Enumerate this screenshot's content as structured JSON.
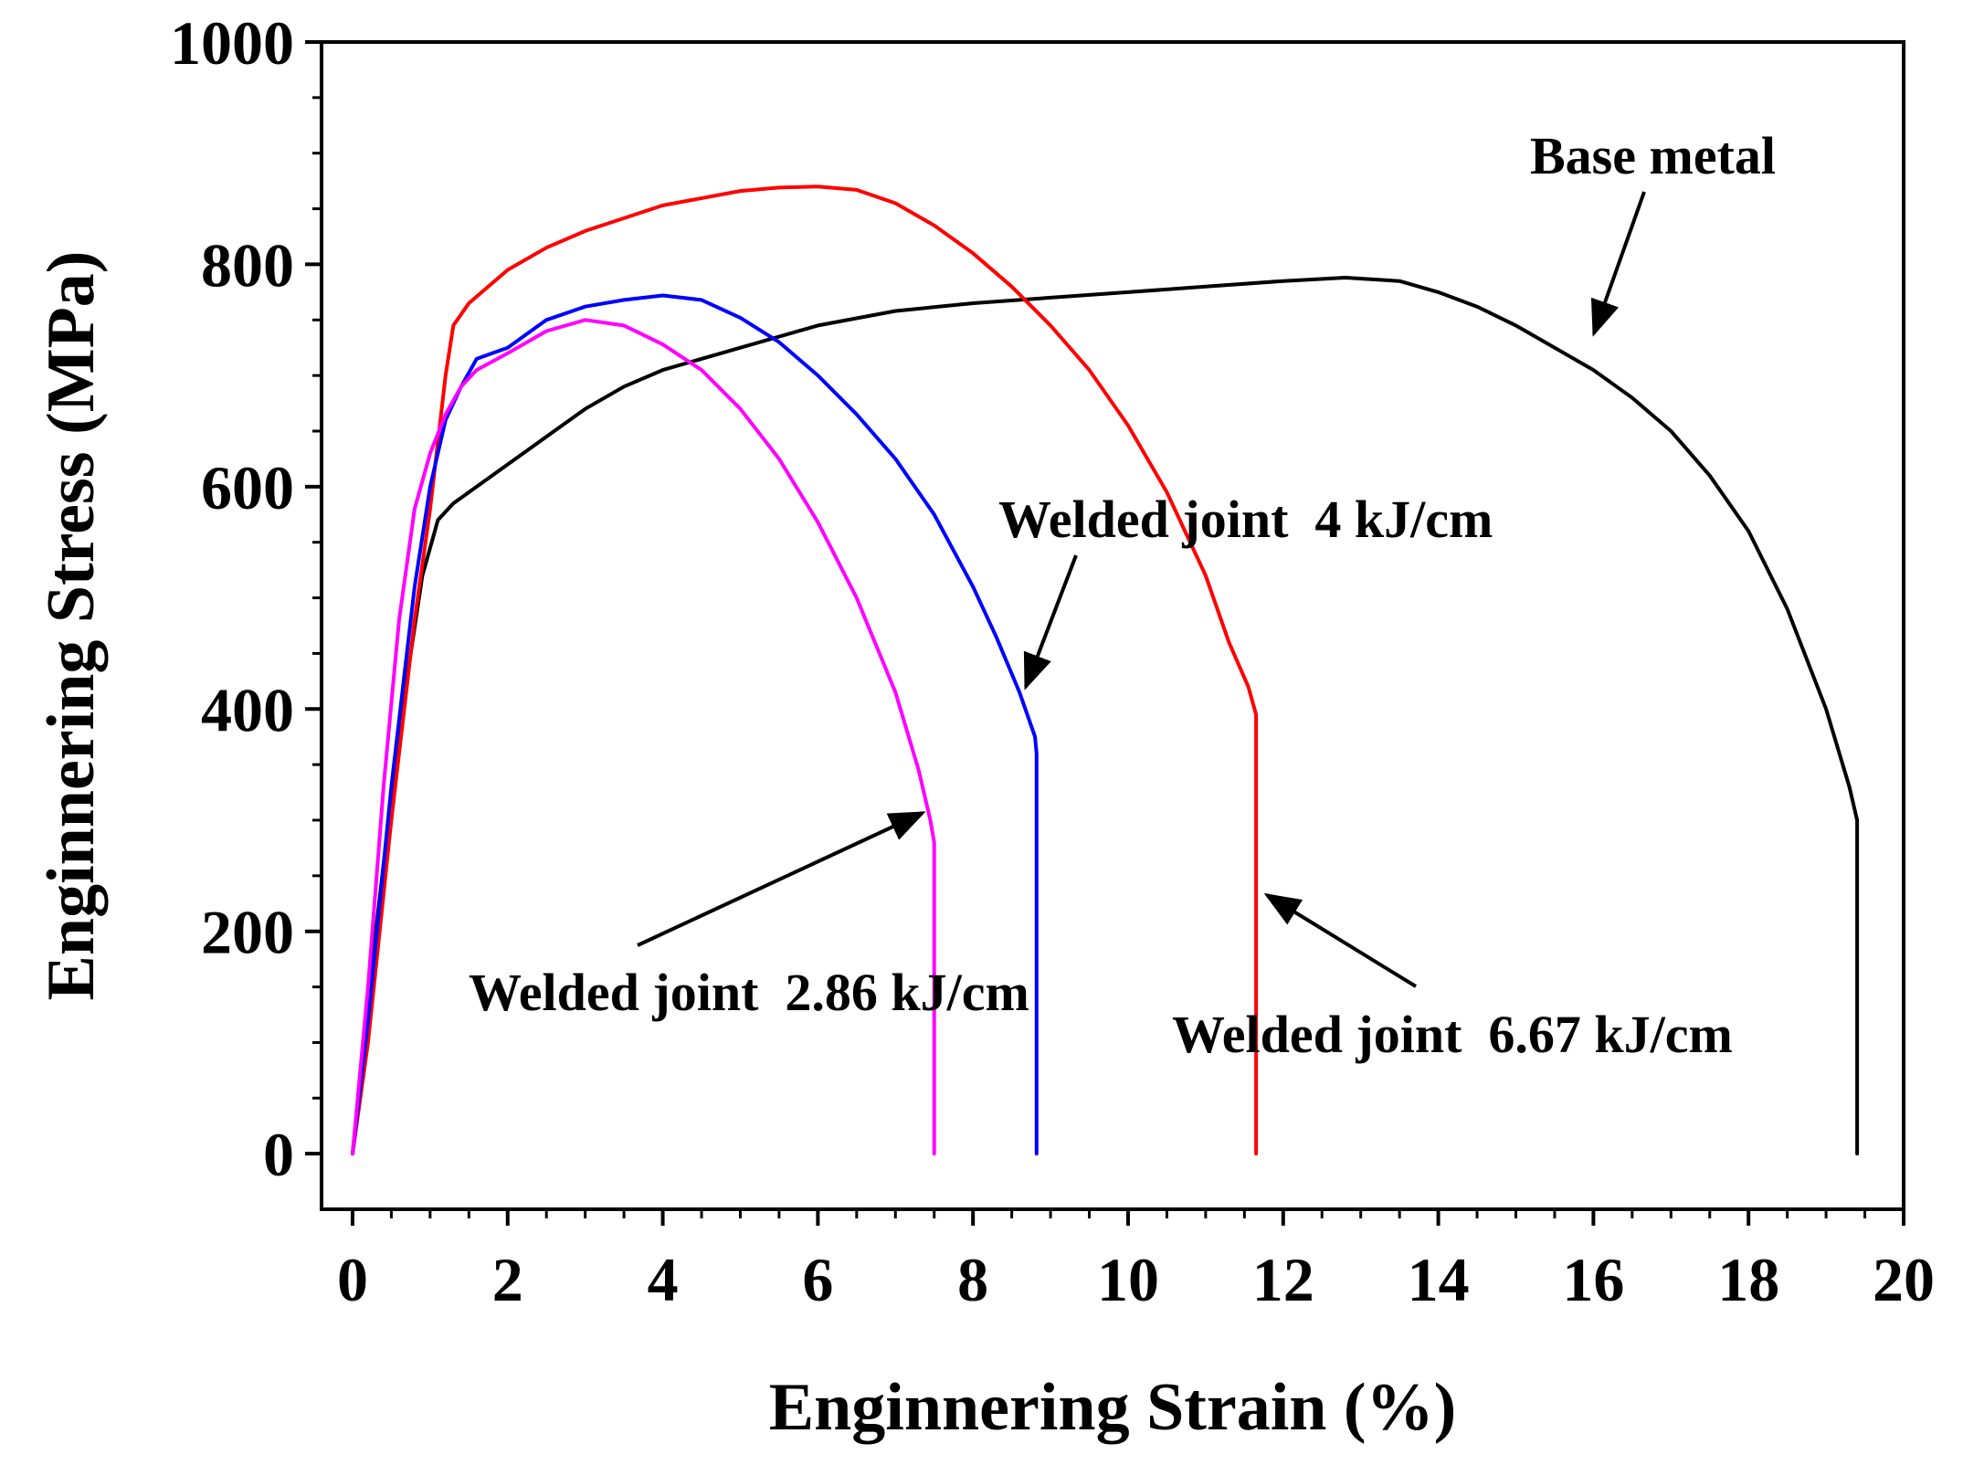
{
  "chart_data": {
    "type": "line",
    "title": "",
    "xlabel": "Enginnering Strain (%)",
    "ylabel": "Enginnering Stress (MPa)",
    "xlim": [
      -0.4,
      20
    ],
    "ylim": [
      -50,
      1000
    ],
    "xticks": [
      0,
      2,
      4,
      6,
      8,
      10,
      12,
      14,
      16,
      18,
      20
    ],
    "yticks": [
      0,
      200,
      400,
      600,
      800,
      1000
    ],
    "grid": false,
    "series": [
      {
        "name": "Base metal",
        "color": "#000000",
        "x": [
          0,
          0.3,
          0.6,
          0.9,
          1.1,
          1.3,
          1.6,
          2,
          2.5,
          3,
          3.5,
          4,
          5,
          6,
          7,
          8,
          9,
          10,
          11,
          12,
          12.8,
          13.5,
          14,
          14.5,
          15,
          15.5,
          16,
          16.5,
          17,
          17.5,
          18,
          18.5,
          19,
          19.3,
          19.4,
          19.4
        ],
        "y": [
          0,
          200,
          380,
          520,
          570,
          585,
          600,
          620,
          645,
          670,
          690,
          705,
          725,
          745,
          758,
          765,
          770,
          775,
          780,
          785,
          788,
          785,
          775,
          762,
          745,
          725,
          705,
          680,
          650,
          610,
          560,
          490,
          400,
          330,
          300,
          0
        ]
      },
      {
        "name": "Welded joint 6.67 kJ/cm",
        "color": "#ff0000",
        "x": [
          0,
          0.2,
          0.5,
          0.8,
          1.0,
          1.2,
          1.3,
          1.5,
          2,
          2.5,
          3,
          4,
          5,
          5.5,
          6,
          6.5,
          7,
          7.5,
          8,
          8.5,
          9,
          9.5,
          10,
          10.5,
          11,
          11.3,
          11.55,
          11.65,
          11.65
        ],
        "y": [
          0,
          100,
          300,
          480,
          580,
          700,
          745,
          765,
          795,
          815,
          830,
          853,
          866,
          869,
          870,
          867,
          855,
          835,
          810,
          780,
          745,
          705,
          655,
          595,
          520,
          460,
          420,
          395,
          0
        ]
      },
      {
        "name": "Welded joint 4 kJ/cm",
        "color": "#0000ff",
        "x": [
          0,
          0.2,
          0.5,
          0.8,
          1.0,
          1.2,
          1.4,
          1.6,
          2,
          2.5,
          3,
          3.5,
          4,
          4.5,
          5,
          5.5,
          6,
          6.5,
          7,
          7.5,
          8,
          8.3,
          8.6,
          8.8,
          8.82,
          8.82
        ],
        "y": [
          0,
          120,
          330,
          510,
          600,
          660,
          690,
          715,
          725,
          750,
          762,
          768,
          772,
          768,
          752,
          730,
          700,
          665,
          625,
          575,
          510,
          465,
          415,
          375,
          360,
          0
        ]
      },
      {
        "name": "Welded joint 2.86 kJ/cm",
        "color": "#ff00ff",
        "x": [
          0,
          0.2,
          0.4,
          0.6,
          0.8,
          1.0,
          1.2,
          1.4,
          1.6,
          2,
          2.5,
          3,
          3.5,
          4,
          4.5,
          5,
          5.5,
          6,
          6.5,
          7,
          7.3,
          7.45,
          7.5,
          7.5
        ],
        "y": [
          0,
          150,
          330,
          480,
          580,
          630,
          665,
          690,
          705,
          720,
          740,
          750,
          745,
          728,
          705,
          670,
          625,
          568,
          500,
          415,
          345,
          300,
          280,
          0
        ]
      }
    ],
    "annotations": [
      {
        "text": "Base metal",
        "series": "Base metal"
      },
      {
        "text": "Welded joint  4 kJ/cm",
        "series": "Welded joint 4 kJ/cm"
      },
      {
        "text": "Welded joint  2.86 kJ/cm",
        "series": "Welded joint 2.86 kJ/cm"
      },
      {
        "text": "Welded joint  6.67 kJ/cm",
        "series": "Welded joint 6.67 kJ/cm"
      }
    ]
  }
}
